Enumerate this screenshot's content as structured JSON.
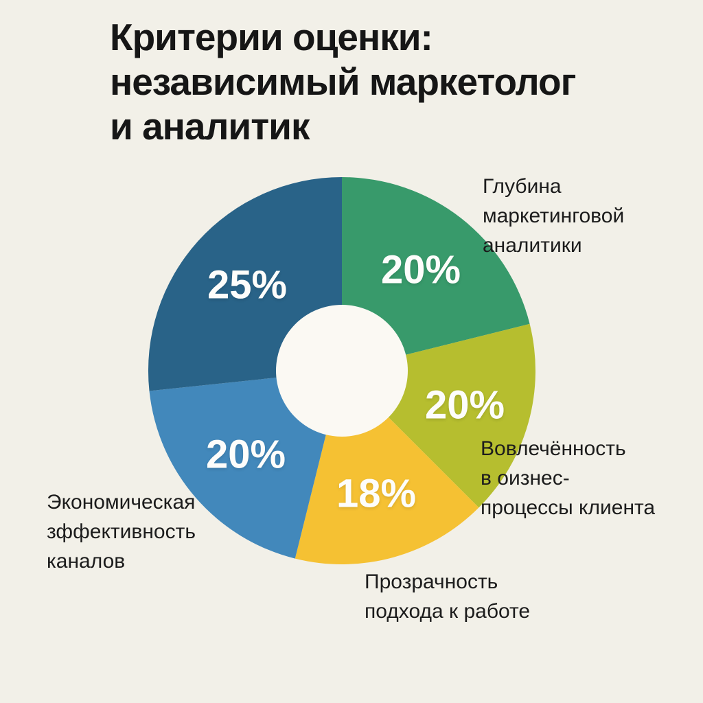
{
  "page": {
    "background_color": "#f2f0e8"
  },
  "title": {
    "text": "Критерии оценки: независимый маркетолог и аналитик",
    "lines": [
      "Критерии оценки:",
      "независимый маркетолог",
      "и аналитик"
    ],
    "color": "#161616"
  },
  "chart_data": {
    "type": "pie",
    "subtype": "donut",
    "title": "Критерии оценки: независимый маркетолог и аналитик",
    "unit": "%",
    "legend_position": "around-chart",
    "hole_color": "#fbf9f3",
    "percent_label_color": "#fdfdfb",
    "categories": [
      "Глубина маркетинговой аналитики",
      "Вовлечённость в оизнес-процессы клиента",
      "Прозрачность подхода к работе",
      "Экономическая зффективность каналов",
      ""
    ],
    "values": [
      20,
      20,
      18,
      20,
      25
    ],
    "segments": [
      {
        "label": "Глубина маркетинговой аналитики",
        "label_lines": [
          "Глубина",
          "маркетинговой",
          "аналитики"
        ],
        "value": 20,
        "percent_label": "20%",
        "color": "#389a6b",
        "start_angle": 0,
        "end_angle": 76
      },
      {
        "label": "Вовлечённость в оизнес-процессы клиента",
        "label_lines": [
          "Вовлечённость",
          "в оизнес-",
          "процессы клиента"
        ],
        "value": 20,
        "percent_label": "20%",
        "color": "#b6be2f",
        "start_angle": 76,
        "end_angle": 135
      },
      {
        "label": "Прозрачность подхода к работе",
        "label_lines": [
          "Прозрачность",
          "подхода к работе"
        ],
        "value": 18,
        "percent_label": "18%",
        "color": "#f5c133",
        "start_angle": 135,
        "end_angle": 194
      },
      {
        "label": "Экономическая зффективность каналов",
        "label_lines": [
          "Экономическая",
          "зффективность",
          "каналов"
        ],
        "value": 20,
        "percent_label": "20%",
        "color": "#4288bb",
        "start_angle": 194,
        "end_angle": 264
      },
      {
        "label": "",
        "label_lines": [],
        "value": 25,
        "percent_label": "25%",
        "color": "#296388",
        "start_angle": 264,
        "end_angle": 360
      }
    ]
  }
}
